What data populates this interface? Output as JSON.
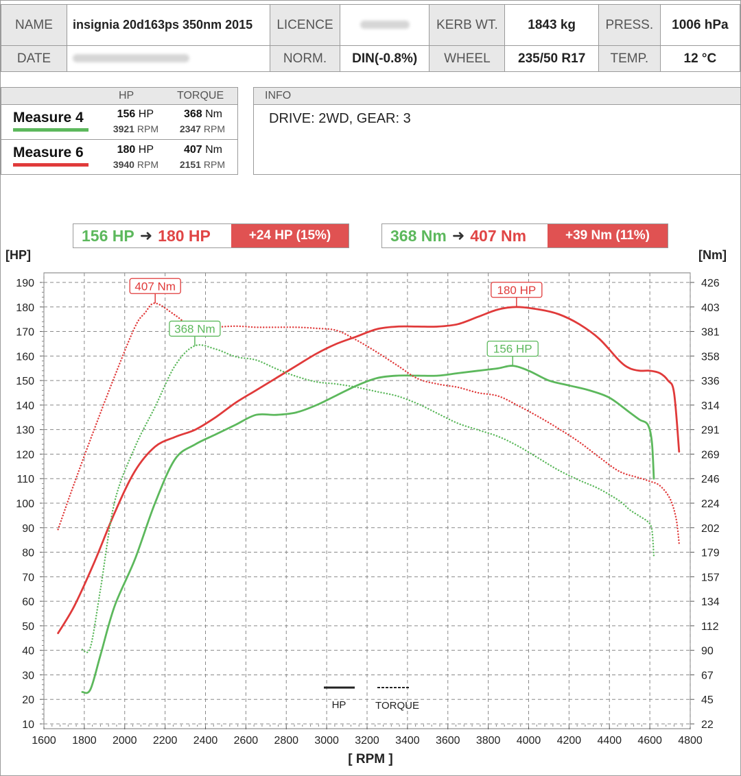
{
  "header": {
    "name_label": "NAME",
    "name_value": "insignia 20d163ps 350nm 2015",
    "licence_label": "LICENCE",
    "kerb_label": "KERB WT.",
    "kerb_value": "1843 kg",
    "press_label": "PRESS.",
    "press_value": "1006 hPa",
    "date_label": "DATE",
    "norm_label": "NORM.",
    "norm_value": "DIN(-0.8%)",
    "wheel_label": "WHEEL",
    "wheel_value": "235/50 R17",
    "temp_label": "TEMP.",
    "temp_value": "12 °C"
  },
  "measures": {
    "hp_label": "HP",
    "torque_label": "TORQUE",
    "items": [
      {
        "name": "Measure 4",
        "color": "#5cb85c",
        "hp": "156",
        "hp_unit": "HP",
        "hp_rpm": "3921",
        "nm": "368",
        "nm_unit": "Nm",
        "nm_rpm": "2347",
        "rpm_unit": "RPM"
      },
      {
        "name": "Measure 6",
        "color": "#e03a3a",
        "hp": "180",
        "hp_unit": "HP",
        "hp_rpm": "3940",
        "nm": "407",
        "nm_unit": "Nm",
        "nm_rpm": "2151",
        "rpm_unit": "RPM"
      }
    ]
  },
  "info": {
    "label": "INFO",
    "text": "DRIVE: 2WD,  GEAR: 3"
  },
  "comparison": {
    "hp_from": "156 HP",
    "hp_to": "180 HP",
    "hp_delta": "+24 HP  (15%)",
    "nm_from": "368 Nm",
    "nm_to": "407 Nm",
    "nm_delta": "+39 Nm  (11%)",
    "arrow_icon": "arrow-right-icon"
  },
  "colors": {
    "measure4": "#5cb85c",
    "measure6": "#e03a3a",
    "delta_bg": "#e05252",
    "label_bg": "#e8e8e8"
  },
  "chart_data": {
    "type": "line",
    "xlabel": "[ RPM ]",
    "ylabel_left": "[HP]",
    "ylabel_right": "[Nm]",
    "xlim": [
      1600,
      4800
    ],
    "ylim_left": [
      10,
      190
    ],
    "x_ticks": [
      1600,
      1800,
      2000,
      2200,
      2400,
      2600,
      2800,
      3000,
      3200,
      3400,
      3600,
      3800,
      4000,
      4200,
      4400,
      4600,
      4800
    ],
    "y_ticks_left": [
      10,
      20,
      30,
      40,
      50,
      60,
      70,
      80,
      90,
      100,
      110,
      120,
      130,
      140,
      150,
      160,
      170,
      180,
      190
    ],
    "y_ticks_right": [
      "22",
      "45",
      "67",
      "90",
      "112",
      "134",
      "157",
      "179",
      "202",
      "224",
      "246",
      "269",
      "291",
      "314",
      "336",
      "358",
      "381",
      "403",
      "426"
    ],
    "grid": true,
    "legend": {
      "hp_label": "HP",
      "torque_label": "TORQUE",
      "placement": "bottom-center"
    },
    "annotations": [
      {
        "text": "407 Nm",
        "series": "measure6-torque",
        "x": 2151,
        "y": 407
      },
      {
        "text": "368 Nm",
        "series": "measure4-torque",
        "x": 2347,
        "y": 368
      },
      {
        "text": "180 HP",
        "series": "measure6-hp",
        "x": 3940,
        "y": 180
      },
      {
        "text": "156 HP",
        "series": "measure4-hp",
        "x": 3921,
        "y": 156
      }
    ],
    "series": [
      {
        "name": "Measure 6",
        "kind": "hp",
        "color": "#e03a3a",
        "style": "solid",
        "x": [
          1670,
          1750,
          1850,
          1950,
          2050,
          2150,
          2250,
          2350,
          2450,
          2550,
          2650,
          2750,
          2850,
          2950,
          3050,
          3150,
          3250,
          3350,
          3450,
          3550,
          3650,
          3750,
          3850,
          3940,
          4050,
          4150,
          4250,
          4350,
          4450,
          4500,
          4550,
          4600,
          4650,
          4690,
          4720,
          4745
        ],
        "y": [
          47,
          58,
          76,
          96,
          113,
          123,
          127,
          130,
          135,
          141,
          146,
          151,
          156,
          161,
          165,
          168,
          171,
          172,
          172,
          172,
          173,
          176,
          179,
          180,
          179,
          177,
          173,
          167,
          158,
          155,
          154,
          154,
          153,
          150,
          145,
          121
        ]
      },
      {
        "name": "Measure 4",
        "kind": "hp",
        "color": "#5cb85c",
        "style": "solid",
        "x": [
          1790,
          1830,
          1880,
          1950,
          2050,
          2150,
          2250,
          2350,
          2450,
          2550,
          2650,
          2750,
          2850,
          2950,
          3050,
          3150,
          3250,
          3350,
          3450,
          3550,
          3650,
          3750,
          3850,
          3921,
          4000,
          4100,
          4200,
          4300,
          4400,
          4500,
          4550,
          4590,
          4610,
          4620
        ],
        "y": [
          23,
          24,
          38,
          58,
          77,
          100,
          118,
          124,
          128,
          132,
          136,
          136,
          137,
          140,
          144,
          148,
          151,
          152,
          152,
          152,
          153,
          154,
          155,
          156,
          154,
          150,
          148,
          146,
          143,
          137,
          134,
          132,
          125,
          110
        ]
      },
      {
        "name": "Measure 6",
        "kind": "torque",
        "color": "#e03a3a",
        "style": "dotted",
        "x": [
          1670,
          1750,
          1850,
          1950,
          2050,
          2100,
          2151,
          2250,
          2350,
          2450,
          2550,
          2650,
          2750,
          2850,
          2950,
          3050,
          3150,
          3250,
          3350,
          3450,
          3550,
          3650,
          3750,
          3850,
          3950,
          4050,
          4150,
          4250,
          4350,
          4450,
          4550,
          4600,
          4650,
          4700,
          4730,
          4745
        ],
        "y": [
          200,
          242,
          292,
          340,
          385,
          398,
          407,
          396,
          383,
          385,
          386,
          385,
          385,
          385,
          384,
          382,
          373,
          362,
          350,
          338,
          333,
          330,
          325,
          322,
          313,
          303,
          292,
          280,
          266,
          253,
          247,
          244,
          240,
          228,
          210,
          187
        ]
      },
      {
        "name": "Measure 4",
        "kind": "torque",
        "color": "#5cb85c",
        "style": "dotted",
        "x": [
          1790,
          1830,
          1880,
          1950,
          2050,
          2150,
          2250,
          2347,
          2450,
          2550,
          2650,
          2750,
          2850,
          2950,
          3050,
          3150,
          3250,
          3350,
          3450,
          3550,
          3650,
          3750,
          3850,
          3950,
          4050,
          4150,
          4250,
          4350,
          4450,
          4500,
          4550,
          4590,
          4610,
          4620
        ],
        "y": [
          90,
          92,
          145,
          225,
          275,
          312,
          350,
          368,
          365,
          358,
          355,
          347,
          340,
          335,
          333,
          330,
          326,
          322,
          315,
          306,
          297,
          291,
          285,
          276,
          265,
          254,
          245,
          237,
          226,
          218,
          212,
          207,
          200,
          175
        ]
      }
    ]
  }
}
